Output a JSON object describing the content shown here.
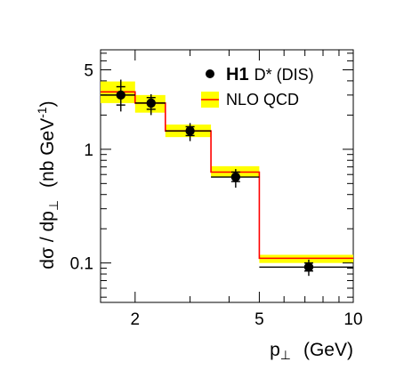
{
  "chart_data": {
    "type": "scatter",
    "x_scale": "log",
    "y_scale": "log",
    "xlim": [
      1.55,
      10
    ],
    "ylim": [
      0.045,
      7.5
    ],
    "xlabel_main": "p",
    "xlabel_sub": "⊥",
    "xlabel_unit": "(GeV)",
    "ylabel_main": "dσ / dp",
    "ylabel_sub": "⊥",
    "ylabel_unit_pre": "(nb GeV",
    "ylabel_unit_sup": "-1",
    "ylabel_unit_post": ")",
    "x_ticks": [
      {
        "value": 2,
        "label": "2"
      },
      {
        "value": 5,
        "label": "5"
      },
      {
        "value": 10,
        "label": "10"
      }
    ],
    "y_ticks": [
      {
        "value": 5,
        "label": "5"
      },
      {
        "value": 1,
        "label": "1"
      },
      {
        "value": 0.1,
        "label": "0.1"
      }
    ],
    "legend": {
      "position": "top-right",
      "data_label_bold": "H1",
      "data_label_rest": "D* (DIS)",
      "theory_label": "NLO QCD"
    },
    "colors": {
      "band": "#ffff00",
      "central_line": "#ff0000",
      "points": "#000000"
    },
    "theory": {
      "name": "NLO QCD",
      "bins": [
        {
          "x_low": 1.55,
          "x_high": 2.0,
          "central": 3.2,
          "low": 2.55,
          "high": 3.95
        },
        {
          "x_low": 2.0,
          "x_high": 2.5,
          "central": 2.55,
          "low": 2.1,
          "high": 3.0
        },
        {
          "x_low": 2.5,
          "x_high": 3.5,
          "central": 1.45,
          "low": 1.28,
          "high": 1.65
        },
        {
          "x_low": 3.5,
          "x_high": 5.0,
          "central": 0.63,
          "low": 0.57,
          "high": 0.71
        },
        {
          "x_low": 5.0,
          "x_high": 10.0,
          "central": 0.11,
          "low": 0.1,
          "high": 0.118
        }
      ]
    },
    "data_series": {
      "name": "H1 D* (DIS)",
      "points": [
        {
          "x": 1.8,
          "y": 3.0,
          "x_low": 1.55,
          "x_high": 2.0,
          "y_stat_low": 2.45,
          "y_stat_high": 3.55,
          "y_tot_low": 2.15,
          "y_tot_high": 4.1
        },
        {
          "x": 2.25,
          "y": 2.55,
          "x_low": 2.0,
          "x_high": 2.5,
          "y_stat_low": 2.25,
          "y_stat_high": 2.85,
          "y_tot_low": 2.0,
          "y_tot_high": 3.05
        },
        {
          "x": 3.0,
          "y": 1.45,
          "x_low": 2.5,
          "x_high": 3.5,
          "y_stat_low": 1.32,
          "y_stat_high": 1.58,
          "y_tot_low": 1.18,
          "y_tot_high": 1.7
        },
        {
          "x": 4.2,
          "y": 0.57,
          "x_low": 3.5,
          "x_high": 5.0,
          "y_stat_low": 0.52,
          "y_stat_high": 0.63,
          "y_tot_low": 0.46,
          "y_tot_high": 0.67
        },
        {
          "x": 7.2,
          "y": 0.092,
          "x_low": 5.0,
          "x_high": 10.0,
          "y_stat_low": 0.085,
          "y_stat_high": 0.1,
          "y_tot_low": 0.077,
          "y_tot_high": 0.107
        }
      ]
    }
  }
}
